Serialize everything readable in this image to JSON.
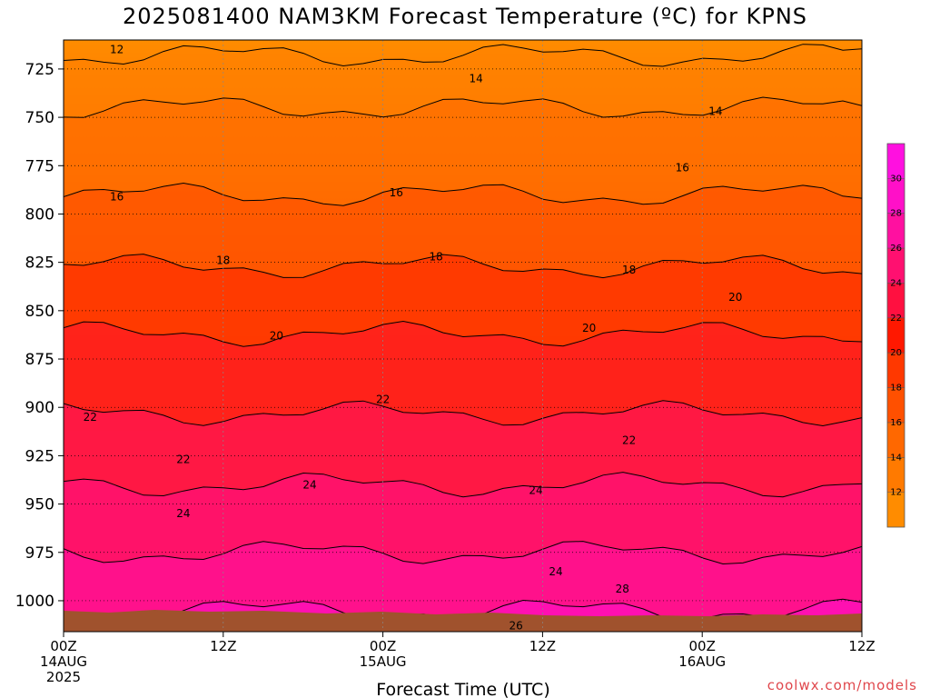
{
  "title": "2025081400 NAM3KM Forecast Temperature (ºC) for KPNS",
  "credit": "coolwx.com/models",
  "chart_data": {
    "type": "heatmap",
    "title": "2025081400 NAM3KM Forecast Temperature (ºC) for KPNS",
    "xlabel": "Forecast Time (UTC)",
    "ylabel": "",
    "x_ticks": [
      {
        "hour": 0,
        "labels": [
          "00Z",
          "14AUG",
          "2025"
        ]
      },
      {
        "hour": 12,
        "labels": [
          "12Z"
        ]
      },
      {
        "hour": 24,
        "labels": [
          "00Z",
          "15AUG"
        ]
      },
      {
        "hour": 36,
        "labels": [
          "12Z"
        ]
      },
      {
        "hour": 48,
        "labels": [
          "00Z",
          "16AUG"
        ]
      },
      {
        "hour": 60,
        "labels": [
          "12Z"
        ]
      }
    ],
    "xlim": [
      0,
      60
    ],
    "y_ticks": [
      725,
      750,
      775,
      800,
      825,
      850,
      875,
      900,
      925,
      950,
      975,
      1000
    ],
    "ylim": [
      1016,
      710
    ],
    "yscale": "pressure (hPa), inverted",
    "grid": true,
    "colorbar": {
      "ticks": [
        12,
        14,
        16,
        18,
        20,
        22,
        24,
        26,
        28,
        30
      ],
      "colors": [
        "#ff8c00",
        "#ff7a00",
        "#ff6800",
        "#ff5000",
        "#ff3800",
        "#ff1800",
        "#ff1040",
        "#ff1070",
        "#ff10a0",
        "#ff10c8",
        "#ff10e0"
      ],
      "placement": "right"
    },
    "isotherm_labels": [
      {
        "text": "12",
        "hour": 4.0,
        "p": 715
      },
      {
        "text": "14",
        "hour": 31.0,
        "p": 730
      },
      {
        "text": "14",
        "hour": 49.0,
        "p": 747
      },
      {
        "text": "16",
        "hour": 4.0,
        "p": 791
      },
      {
        "text": "16",
        "hour": 25.0,
        "p": 789
      },
      {
        "text": "16",
        "hour": 46.5,
        "p": 776
      },
      {
        "text": "18",
        "hour": 12.0,
        "p": 824
      },
      {
        "text": "18",
        "hour": 28.0,
        "p": 822
      },
      {
        "text": "18",
        "hour": 42.5,
        "p": 829
      },
      {
        "text": "20",
        "hour": 16.0,
        "p": 863
      },
      {
        "text": "20",
        "hour": 39.5,
        "p": 859
      },
      {
        "text": "20",
        "hour": 50.5,
        "p": 843
      },
      {
        "text": "22",
        "hour": 2.0,
        "p": 905
      },
      {
        "text": "22",
        "hour": 24.0,
        "p": 896
      },
      {
        "text": "22",
        "hour": 9.0,
        "p": 927
      },
      {
        "text": "22",
        "hour": 42.5,
        "p": 917
      },
      {
        "text": "24",
        "hour": 18.5,
        "p": 940
      },
      {
        "text": "24",
        "hour": 9.0,
        "p": 955
      },
      {
        "text": "24",
        "hour": 35.5,
        "p": 943
      },
      {
        "text": "24",
        "hour": 37.0,
        "p": 985
      },
      {
        "text": "26",
        "hour": 34.0,
        "p": 1013
      },
      {
        "text": "28",
        "hour": 42.0,
        "p": 994
      }
    ],
    "terrain_color": "#a0522d"
  }
}
